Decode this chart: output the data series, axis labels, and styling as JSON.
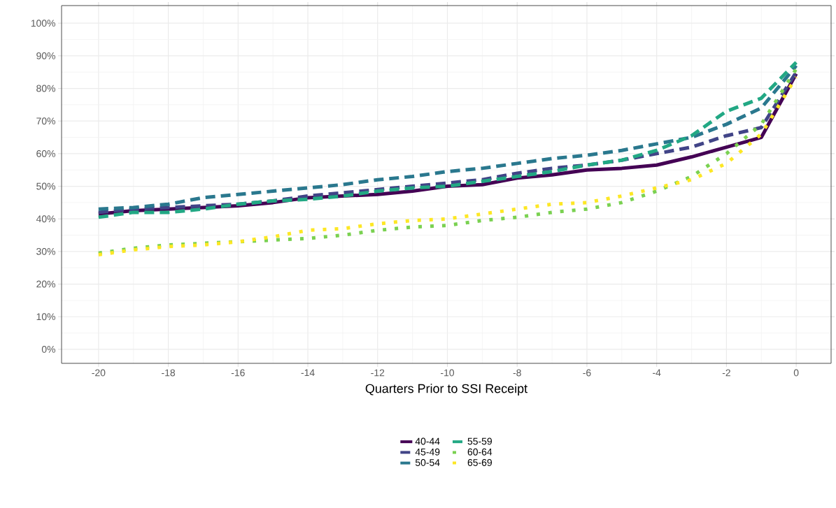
{
  "chart_data": {
    "type": "line",
    "xlabel": "Quarters Prior to SSI Receipt",
    "x": [
      -20,
      -19,
      -18,
      -17,
      -16,
      -15,
      -14,
      -13,
      -12,
      -11,
      -10,
      -9,
      -8,
      -7,
      -6,
      -5,
      -4,
      -3,
      -2,
      -1,
      0
    ],
    "series": [
      {
        "name": "40-44",
        "color": "#440154",
        "line_style": "solid",
        "values": [
          41.5,
          42.5,
          43,
          43.5,
          44,
          45,
          46.5,
          47,
          47.5,
          48.5,
          50,
          50.5,
          52.5,
          53.5,
          55,
          55.5,
          56.5,
          59,
          62,
          65,
          84.5
        ]
      },
      {
        "name": "45-49",
        "color": "#414487",
        "line_style": "dashed",
        "values": [
          42,
          43,
          43.5,
          44,
          44.5,
          45.5,
          47,
          48,
          49,
          50,
          51,
          52,
          54,
          55.5,
          56.5,
          58,
          60,
          62,
          65.5,
          68,
          85
        ]
      },
      {
        "name": "50-54",
        "color": "#2a788e",
        "line_style": "dashed",
        "values": [
          43,
          43.5,
          44.5,
          46.5,
          47.5,
          48.5,
          49.5,
          50.5,
          52,
          53,
          54.5,
          55.5,
          57,
          58.5,
          59.5,
          61,
          63,
          65,
          69,
          74,
          87
        ]
      },
      {
        "name": "55-59",
        "color": "#22a884",
        "line_style": "dashed",
        "values": [
          40.5,
          42,
          42,
          43,
          44.5,
          45.5,
          46,
          47,
          48.5,
          49.5,
          50,
          51.5,
          53,
          54.5,
          56.5,
          58,
          61,
          65.5,
          73,
          77,
          88
        ]
      },
      {
        "name": "60-64",
        "color": "#7ad151",
        "line_style": "dotted",
        "values": [
          29.5,
          31,
          32,
          32.5,
          33,
          33.5,
          34,
          35,
          36.5,
          37.5,
          38,
          39.5,
          40.5,
          42,
          43,
          45,
          48.5,
          53,
          60,
          69,
          86
        ]
      },
      {
        "name": "65-69",
        "color": "#fde725",
        "line_style": "dotted",
        "values": [
          29,
          30.5,
          31.5,
          32,
          33,
          34.5,
          36.5,
          37,
          38.5,
          39.5,
          40,
          41.5,
          43,
          44.5,
          45,
          47,
          49.5,
          52,
          57,
          66,
          83.5
        ]
      }
    ],
    "xlim": [
      -21.06,
      1.0
    ],
    "ylim": [
      -4.3,
      105.4
    ],
    "xticks": [
      -20,
      -18,
      -16,
      -14,
      -12,
      -10,
      -8,
      -6,
      -4,
      -2,
      0
    ],
    "yticks": [
      {
        "value": 0,
        "label": "0%"
      },
      {
        "value": 10,
        "label": "10%"
      },
      {
        "value": 20,
        "label": "20%"
      },
      {
        "value": 30,
        "label": "30%"
      },
      {
        "value": 40,
        "label": "40%"
      },
      {
        "value": 50,
        "label": "50%"
      },
      {
        "value": 60,
        "label": "60%"
      },
      {
        "value": 70,
        "label": "70%"
      },
      {
        "value": 80,
        "label": "80%"
      },
      {
        "value": 90,
        "label": "90%"
      },
      {
        "value": 100,
        "label": "100%"
      }
    ],
    "grid": true,
    "legend": "bottom"
  }
}
